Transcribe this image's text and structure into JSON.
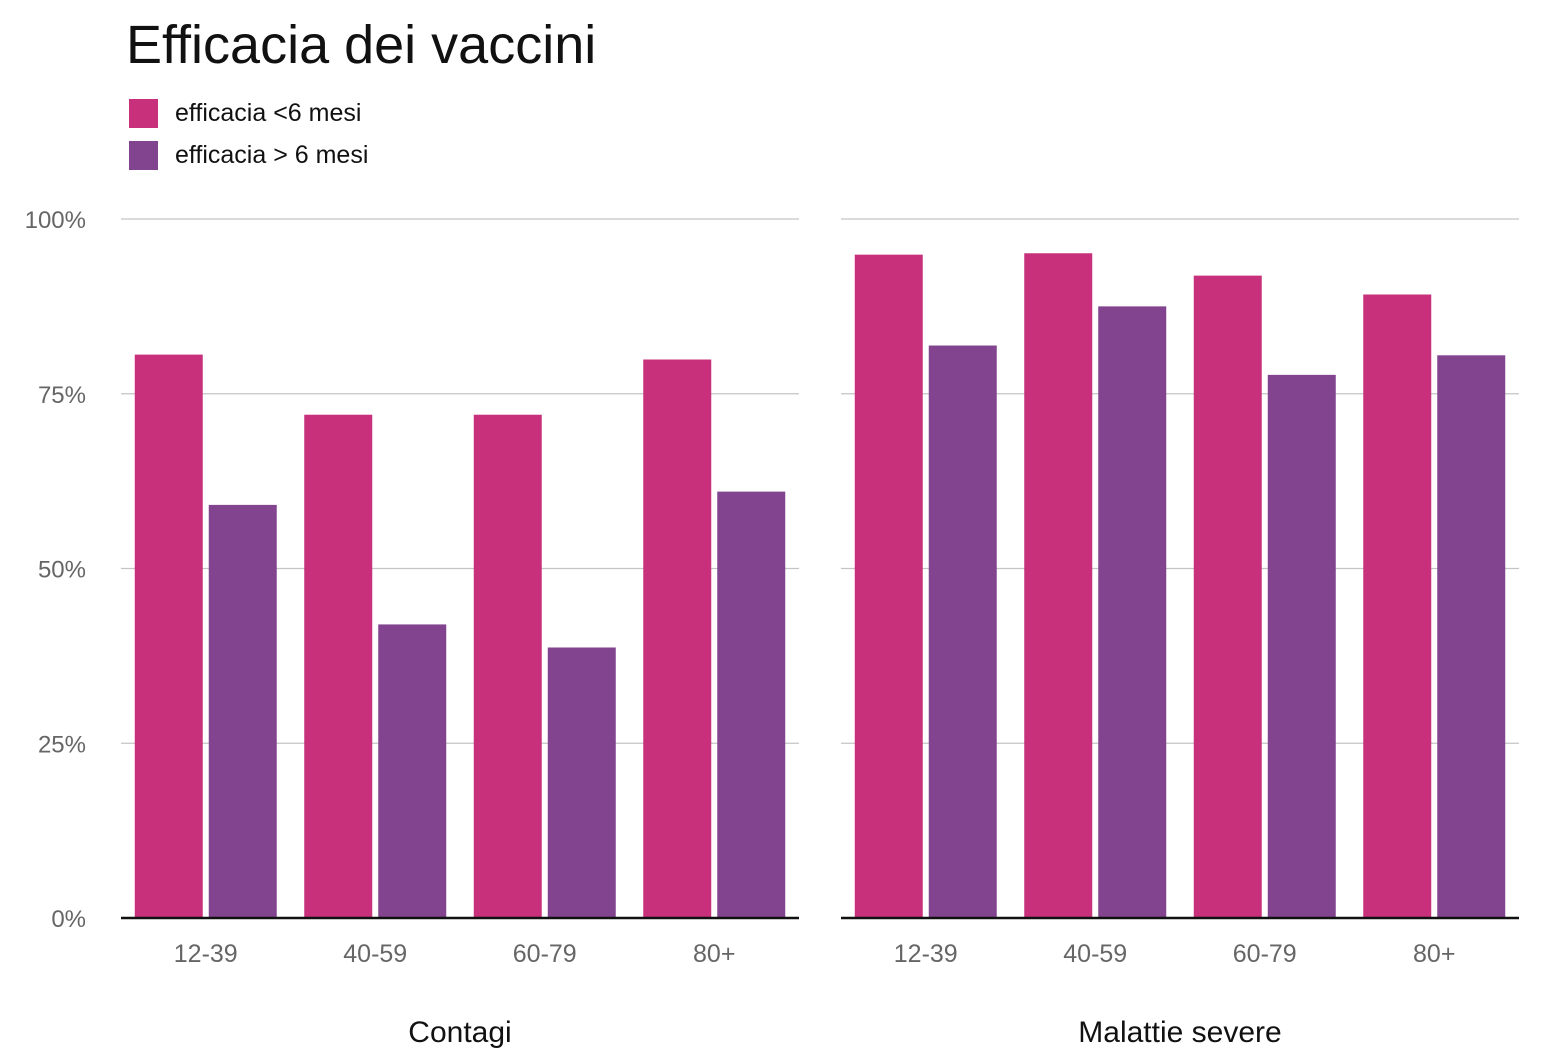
{
  "chart_data": {
    "type": "bar",
    "title": "Efficacia dei vaccini",
    "ylim": [
      0,
      100
    ],
    "yticks": [
      0,
      25,
      50,
      75,
      100
    ],
    "ytick_labels": [
      "0%",
      "25%",
      "50%",
      "75%",
      "100%"
    ],
    "grid": true,
    "legend_position": "top-left",
    "series": [
      {
        "name": "efficacia <6 mesi",
        "color": "#c8307b"
      },
      {
        "name": "efficacia > 6 mesi",
        "color": "#82448e"
      }
    ],
    "panels": [
      {
        "xlabel": "Contagi",
        "categories": [
          "12-39",
          "40-59",
          "60-79",
          "80+"
        ],
        "values": [
          [
            80.6,
            72,
            72,
            79.9
          ],
          [
            59.1,
            42,
            38.7,
            61
          ]
        ]
      },
      {
        "xlabel": "Malattie severe",
        "categories": [
          "12-39",
          "40-59",
          "60-79",
          "80+"
        ],
        "values": [
          [
            94.9,
            95.1,
            91.9,
            89.2
          ],
          [
            81.9,
            87.5,
            77.7,
            80.5
          ]
        ]
      }
    ]
  }
}
